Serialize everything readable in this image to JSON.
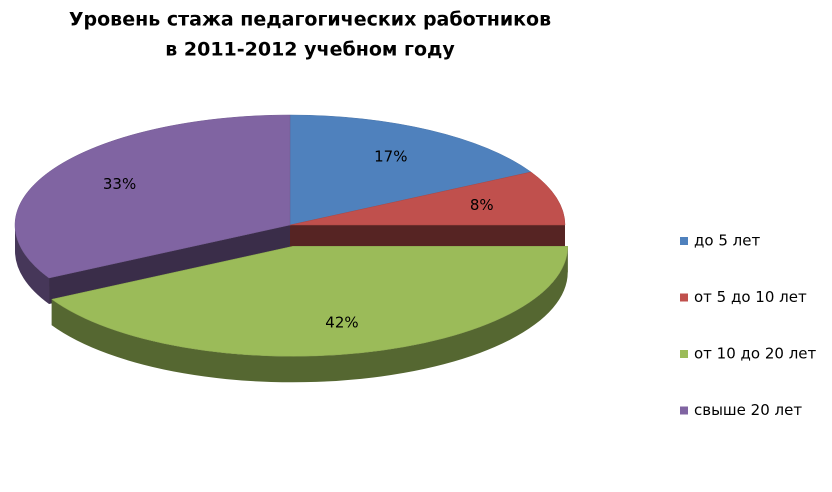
{
  "chart_data": {
    "type": "pie",
    "title": [
      "Уровень стажа педагогических работников",
      "в 2011-2012 учебном году"
    ],
    "categories": [
      "до 5 лет",
      "от 5 до 10 лет",
      "от 10 до 20 лет",
      "свыше 20 лет"
    ],
    "values": [
      17,
      8,
      42,
      33
    ],
    "value_labels": [
      "17%",
      "8%",
      "42%",
      "33%"
    ],
    "colors": [
      "#4f81bd",
      "#c0504d",
      "#9bbb59",
      "#8064a2"
    ],
    "exploded": 2,
    "legend": "right"
  }
}
